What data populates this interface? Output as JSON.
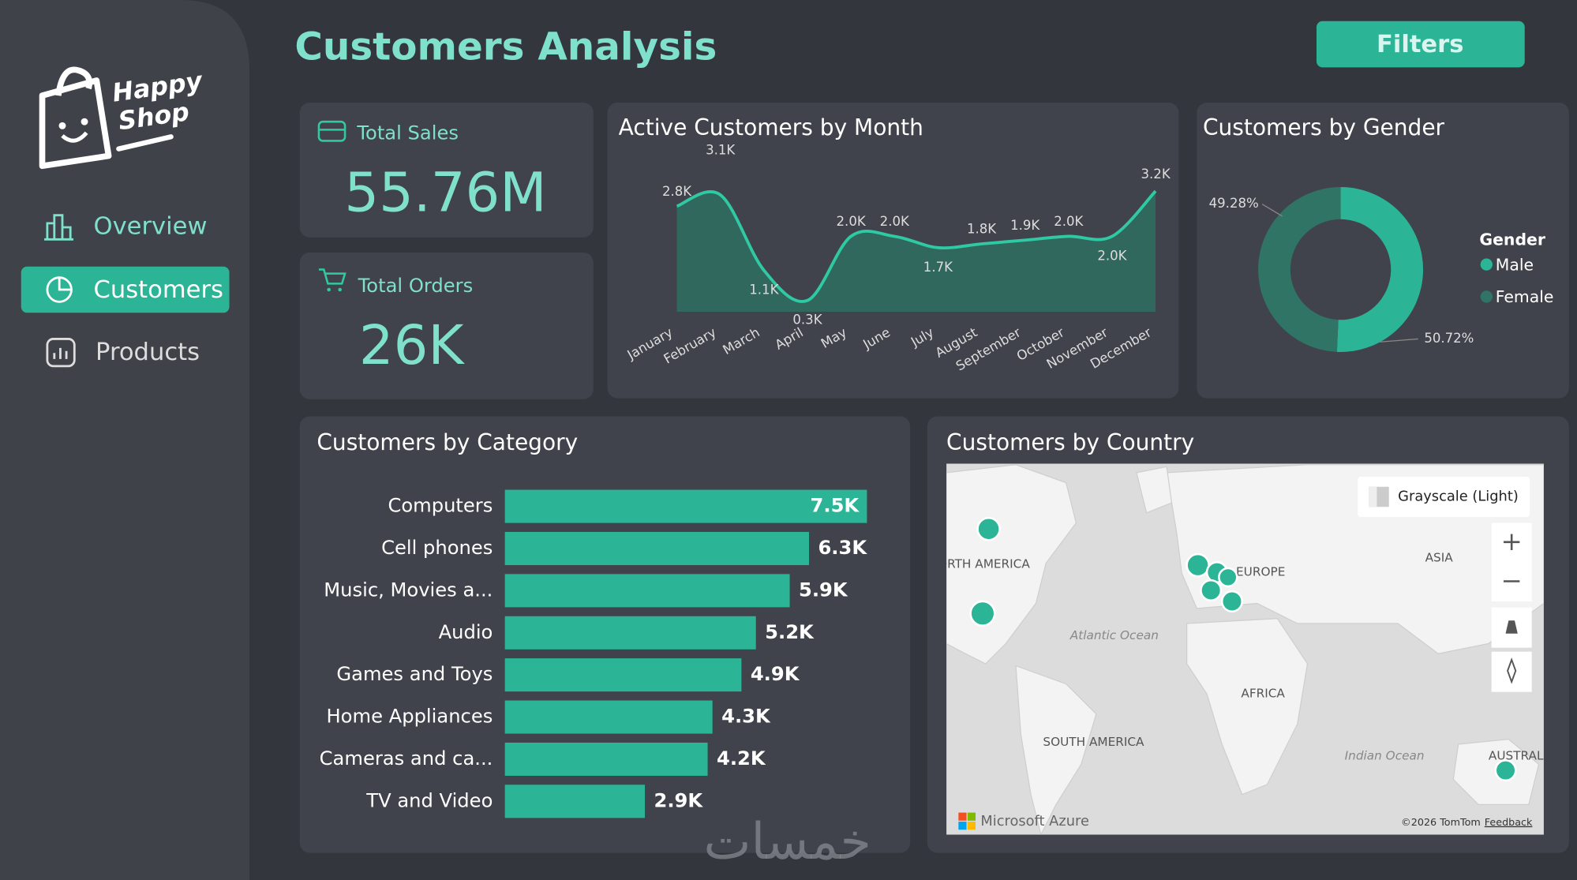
{
  "logo": {
    "line1": "Happy",
    "line2": "Shop"
  },
  "nav": [
    "Overview",
    "Customers",
    "Products"
  ],
  "header": {
    "title": "Customers Analysis",
    "button": "Filters"
  },
  "kpis": [
    {
      "label": "Total Sales",
      "value": "55.76M"
    },
    {
      "label": "Total Orders",
      "value": "26K"
    }
  ],
  "chart_data": [
    {
      "type": "line",
      "title": "Active Customers by Month",
      "categories": [
        "January",
        "February",
        "March",
        "April",
        "May",
        "June",
        "July",
        "August",
        "September",
        "October",
        "November",
        "December"
      ],
      "values": [
        2800,
        3100,
        1100,
        300,
        2000,
        2000,
        1700,
        1800,
        1900,
        2000,
        2000,
        3200
      ],
      "value_labels": [
        "2.8K",
        "3.1K",
        "1.1K",
        "0.3K",
        "2.0K",
        "2.0K",
        "1.7K",
        "1.8K",
        "1.9K",
        "2.0K",
        "2.0K",
        "3.2K"
      ],
      "color": "#2fc9a3"
    },
    {
      "type": "pie",
      "title": "Customers by Gender",
      "legend_title": "Gender",
      "categories": [
        "Male",
        "Female"
      ],
      "values": [
        50.72,
        49.28
      ],
      "value_labels": [
        "50.72%",
        "49.28%"
      ],
      "colors": [
        "#2bb596",
        "#2f7464"
      ]
    },
    {
      "type": "bar",
      "title": "Customers by Category",
      "categories": [
        "Computers",
        "Cell phones",
        "Music, Movies a...",
        "Audio",
        "Games and Toys",
        "Home Appliances",
        "Cameras and ca...",
        "TV and Video"
      ],
      "values": [
        7500,
        6300,
        5900,
        5200,
        4900,
        4300,
        4200,
        2900
      ],
      "value_labels": [
        "7.5K",
        "6.3K",
        "5.9K",
        "5.2K",
        "4.9K",
        "4.3K",
        "4.2K",
        "2.9K"
      ],
      "color": "#2bb596"
    }
  ],
  "map": {
    "title": "Customers by Country",
    "style": "Grayscale (Light)",
    "labels": [
      "NORTH AMERICA",
      "EUROPE",
      "ASIA",
      "Atlantic Ocean",
      "AFRICA",
      "SOUTH AMERICA",
      "Indian Ocean",
      "AUSTRALIA"
    ],
    "brand": "Microsoft Azure",
    "copyright": "©2026 TomTom",
    "feedback": "Feedback"
  },
  "watermark": "خمسات"
}
